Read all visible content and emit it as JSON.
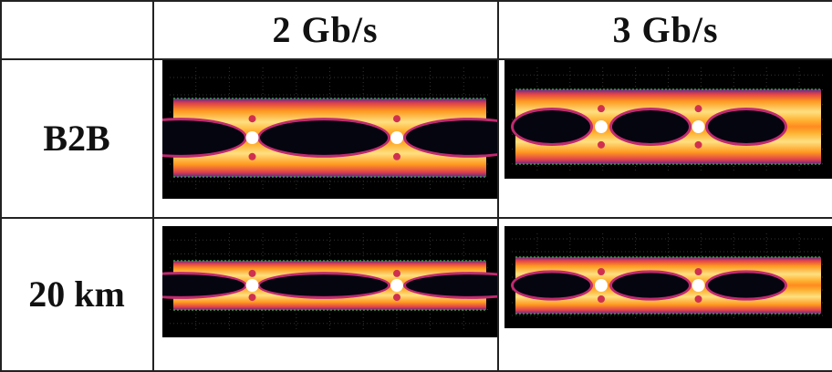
{
  "table": {
    "columns": [
      "2 Gb/s",
      "3 Gb/s"
    ],
    "rows": [
      "B2B",
      "20 km"
    ]
  }
}
